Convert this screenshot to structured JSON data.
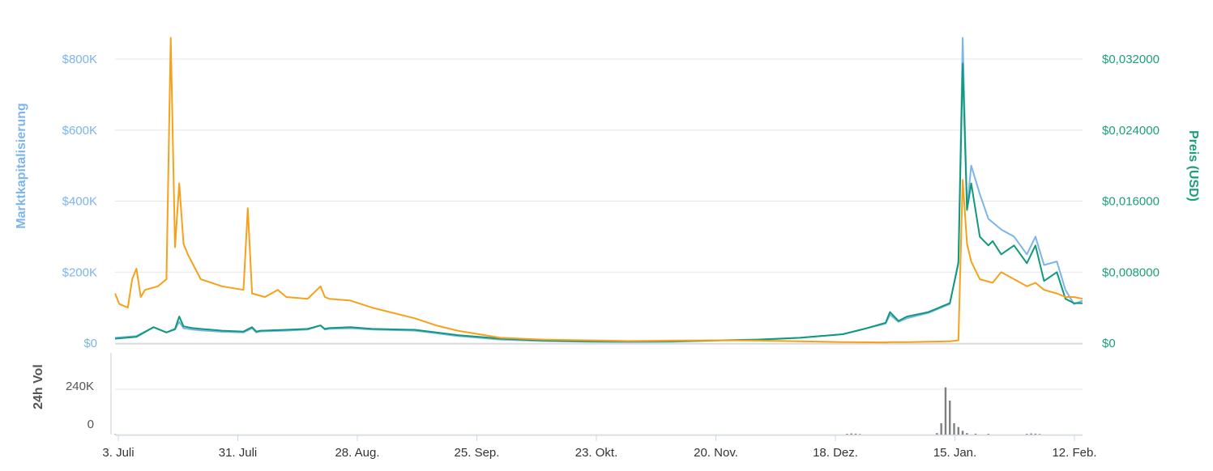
{
  "chart_data": {
    "type": "line",
    "left_axis": {
      "label": "Marktkapitalisierung",
      "ticks": [
        "$0",
        "$200K",
        "$400K",
        "$600K",
        "$800K"
      ],
      "range": [
        0,
        800000
      ]
    },
    "right_axis": {
      "label": "Preis  (USD)",
      "ticks": [
        "$0",
        "$0,008000",
        "$0,016000",
        "$0,024000",
        "$0,032000"
      ],
      "range": [
        0,
        0.032
      ]
    },
    "volume_axis": {
      "label": "24h Vol",
      "ticks": [
        "0",
        "240K"
      ],
      "range": [
        0,
        240000
      ]
    },
    "x_ticks": [
      "3. Juli",
      "31. Juli",
      "28. Aug.",
      "25. Sep.",
      "23. Okt.",
      "20. Nov.",
      "18. Dez.",
      "15. Jan.",
      "12. Feb."
    ],
    "x_range_days": [
      0,
      226
    ],
    "grid": true,
    "colors": {
      "market_cap": "#7cb5ec",
      "price_green": "#10997a",
      "price_orange": "#f7a11a",
      "volume": "#808080",
      "grid": "#e6e6e6",
      "right_axis_text": "#1b9f7a",
      "left_axis_text": "#7cb5ec"
    },
    "series": [
      {
        "key": "market_cap",
        "axis": "left",
        "x": [
          0,
          5,
          9,
          12,
          14,
          15,
          16,
          17,
          18,
          20,
          25,
          30,
          32,
          33,
          34,
          40,
          45,
          48,
          49,
          50,
          55,
          60,
          70,
          75,
          80,
          85,
          90,
          100,
          110,
          120,
          130,
          140,
          150,
          160,
          170,
          175,
          180,
          181,
          183,
          185,
          190,
          195,
          197,
          198,
          199,
          200,
          202,
          204,
          205,
          207,
          210,
          213,
          215,
          217,
          220,
          222,
          224,
          226
        ],
        "y": [
          15000,
          20000,
          45000,
          30000,
          38000,
          60000,
          42000,
          40000,
          38000,
          36000,
          32000,
          30000,
          42000,
          30000,
          33000,
          35000,
          38000,
          50000,
          38000,
          40000,
          42000,
          38000,
          35000,
          28000,
          20000,
          15000,
          10000,
          6000,
          4000,
          3000,
          4000,
          7000,
          9000,
          15000,
          25000,
          40000,
          55000,
          80000,
          60000,
          70000,
          85000,
          110000,
          230000,
          860000,
          380000,
          500000,
          420000,
          350000,
          340000,
          320000,
          300000,
          250000,
          300000,
          220000,
          230000,
          150000,
          110000,
          120000
        ]
      },
      {
        "key": "price_green",
        "axis": "right",
        "x": [
          0,
          5,
          9,
          12,
          14,
          15,
          16,
          17,
          18,
          20,
          25,
          30,
          32,
          33,
          34,
          40,
          45,
          48,
          49,
          50,
          55,
          60,
          70,
          75,
          80,
          85,
          90,
          100,
          110,
          120,
          130,
          140,
          150,
          160,
          170,
          175,
          180,
          181,
          183,
          185,
          190,
          195,
          197,
          198,
          199,
          200,
          202,
          204,
          205,
          207,
          210,
          213,
          215,
          217,
          220,
          222,
          224,
          226
        ],
        "y": [
          0.0005,
          0.0007,
          0.0018,
          0.0012,
          0.0016,
          0.003,
          0.0019,
          0.0018,
          0.0017,
          0.0016,
          0.0014,
          0.0013,
          0.0018,
          0.0013,
          0.0014,
          0.0015,
          0.0016,
          0.002,
          0.0016,
          0.0017,
          0.0018,
          0.0016,
          0.0015,
          0.0012,
          0.0009,
          0.0007,
          0.0005,
          0.0003,
          0.0002,
          0.0002,
          0.0002,
          0.0003,
          0.0004,
          0.0006,
          0.001,
          0.0016,
          0.0023,
          0.0035,
          0.0025,
          0.003,
          0.0035,
          0.0045,
          0.009,
          0.0315,
          0.015,
          0.018,
          0.012,
          0.011,
          0.0115,
          0.01,
          0.011,
          0.009,
          0.011,
          0.007,
          0.008,
          0.005,
          0.0045,
          0.0045
        ]
      },
      {
        "key": "price_orange",
        "axis": "left",
        "x": [
          0,
          1,
          3,
          4,
          5,
          6,
          7,
          10,
          12,
          13,
          14,
          15,
          16,
          17,
          20,
          25,
          30,
          31,
          32,
          35,
          38,
          40,
          45,
          48,
          49,
          50,
          55,
          60,
          70,
          75,
          80,
          85,
          90,
          100,
          110,
          120,
          130,
          140,
          150,
          160,
          170,
          180,
          181,
          185,
          190,
          195,
          197,
          198,
          199,
          200,
          202,
          205,
          207,
          210,
          213,
          215,
          217,
          220,
          222,
          224,
          226
        ],
        "y": [
          140000,
          110000,
          100000,
          180000,
          210000,
          130000,
          150000,
          160000,
          180000,
          860000,
          270000,
          450000,
          280000,
          250000,
          180000,
          160000,
          150000,
          380000,
          140000,
          130000,
          150000,
          130000,
          125000,
          160000,
          130000,
          125000,
          120000,
          100000,
          70000,
          50000,
          35000,
          25000,
          15000,
          10000,
          8000,
          6000,
          7000,
          8000,
          7000,
          5000,
          3000,
          2000,
          3000,
          3000,
          4000,
          5000,
          8000,
          460000,
          280000,
          230000,
          180000,
          170000,
          200000,
          180000,
          160000,
          170000,
          150000,
          140000,
          130000,
          130000,
          125000
        ]
      }
    ],
    "volume": {
      "x": [
        0,
        171,
        172,
        173,
        174,
        192,
        193,
        194,
        195,
        196,
        197,
        198,
        199,
        201,
        204,
        213,
        214,
        215,
        216
      ],
      "y": [
        2000,
        4000,
        6000,
        5000,
        3000,
        8000,
        60000,
        250000,
        180000,
        60000,
        40000,
        20000,
        8000,
        5000,
        4000,
        4000,
        6000,
        5000,
        3000
      ]
    }
  }
}
